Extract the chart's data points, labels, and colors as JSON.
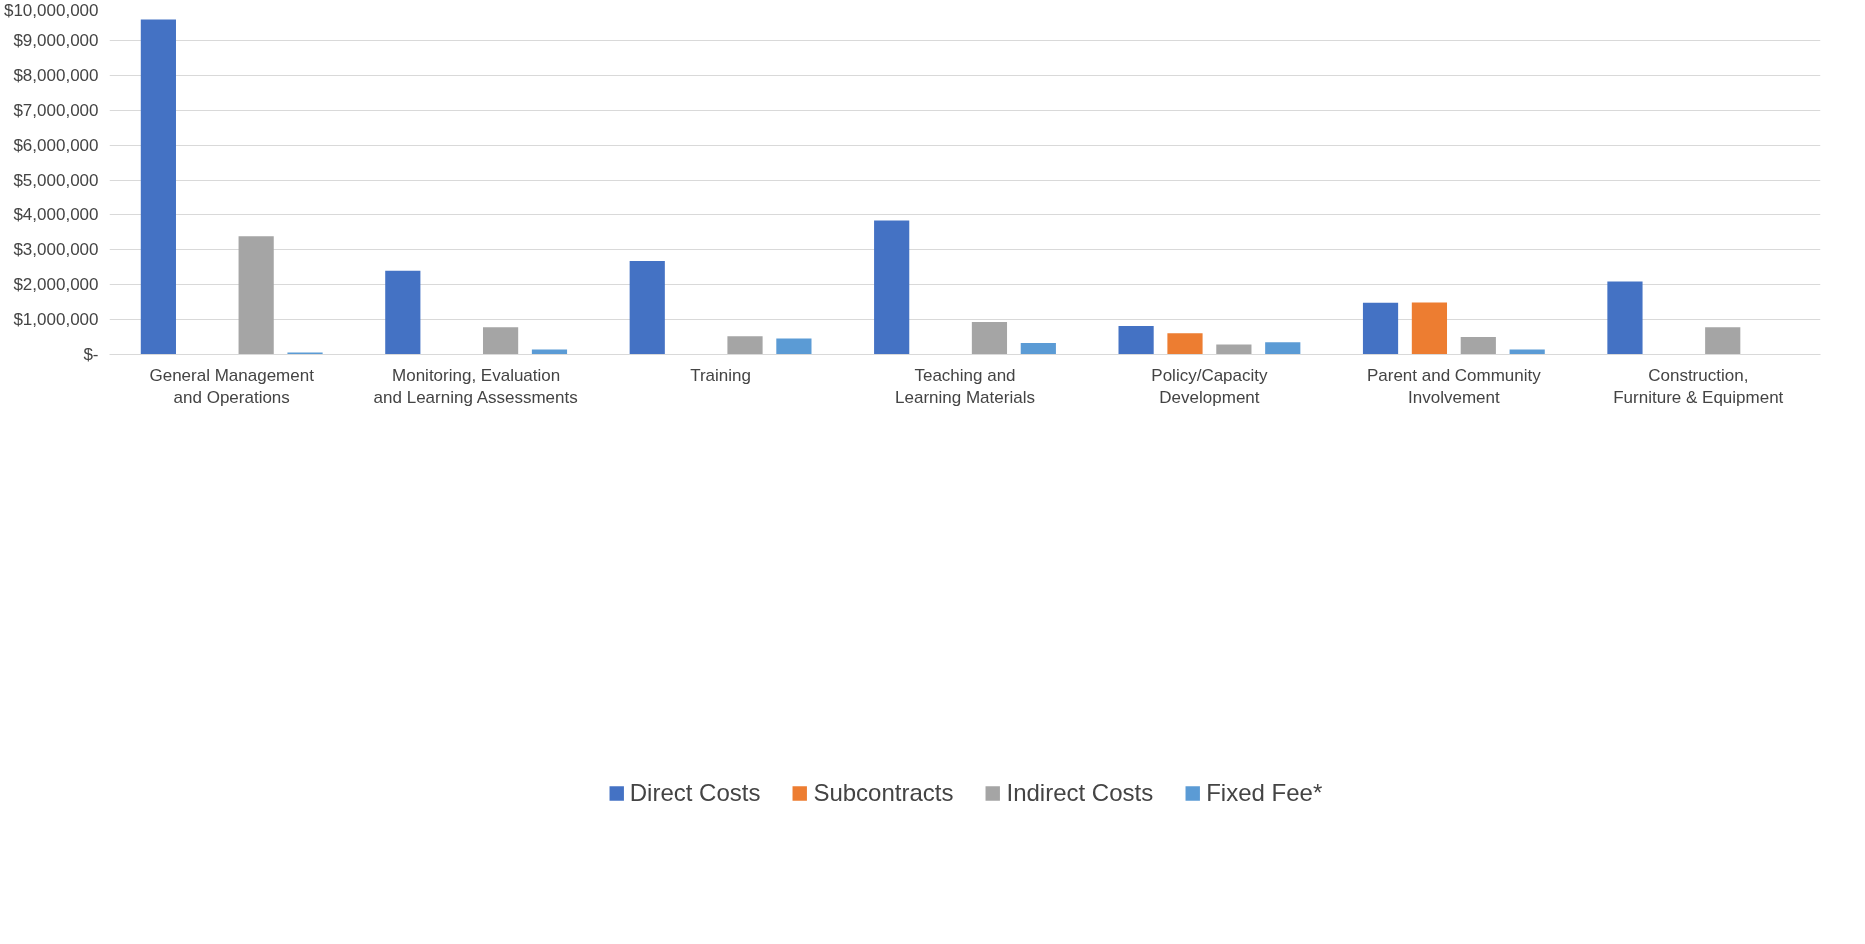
{
  "chart_data": {
    "type": "bar",
    "categories": [
      "General Management and Operations",
      "Monitoring, Evaluation and Learning Assessments",
      "Training",
      "Teaching and Learning Materials",
      "Policy/Capacity Development",
      "Parent and Community Involvement",
      "Construction, Furniture & Equipment"
    ],
    "series": [
      {
        "name": "Direct Costs",
        "color": "#4472c4",
        "values": [
          9600000,
          2400000,
          2680000,
          3840000,
          820000,
          1480000,
          2090000
        ]
      },
      {
        "name": "Subcontracts",
        "color": "#ed7d31",
        "values": [
          null,
          null,
          null,
          null,
          610000,
          1490000,
          null
        ]
      },
      {
        "name": "Indirect Costs",
        "color": "#a5a5a5",
        "values": [
          3390000,
          780000,
          520000,
          930000,
          290000,
          500000,
          780000
        ]
      },
      {
        "name": "Fixed Fee*",
        "color": "#5b9bd5",
        "values": [
          60000,
          140000,
          460000,
          330000,
          350000,
          140000,
          null
        ]
      }
    ],
    "ylim": [
      0,
      10000000
    ],
    "yticks": [
      {
        "value": 0,
        "label": "$-"
      },
      {
        "value": 1000000,
        "label": "$1,000,000"
      },
      {
        "value": 2000000,
        "label": "$2,000,000"
      },
      {
        "value": 3000000,
        "label": "$3,000,000"
      },
      {
        "value": 4000000,
        "label": "$4,000,000"
      },
      {
        "value": 5000000,
        "label": "$5,000,000"
      },
      {
        "value": 6000000,
        "label": "$6,000,000"
      },
      {
        "value": 7000000,
        "label": "$7,000,000"
      },
      {
        "value": 8000000,
        "label": "$8,000,000"
      },
      {
        "value": 9000000,
        "label": "$9,000,000"
      },
      {
        "value": 10000000,
        "label": "$10,000,000"
      }
    ],
    "grid": "y",
    "legend": "bottom"
  }
}
